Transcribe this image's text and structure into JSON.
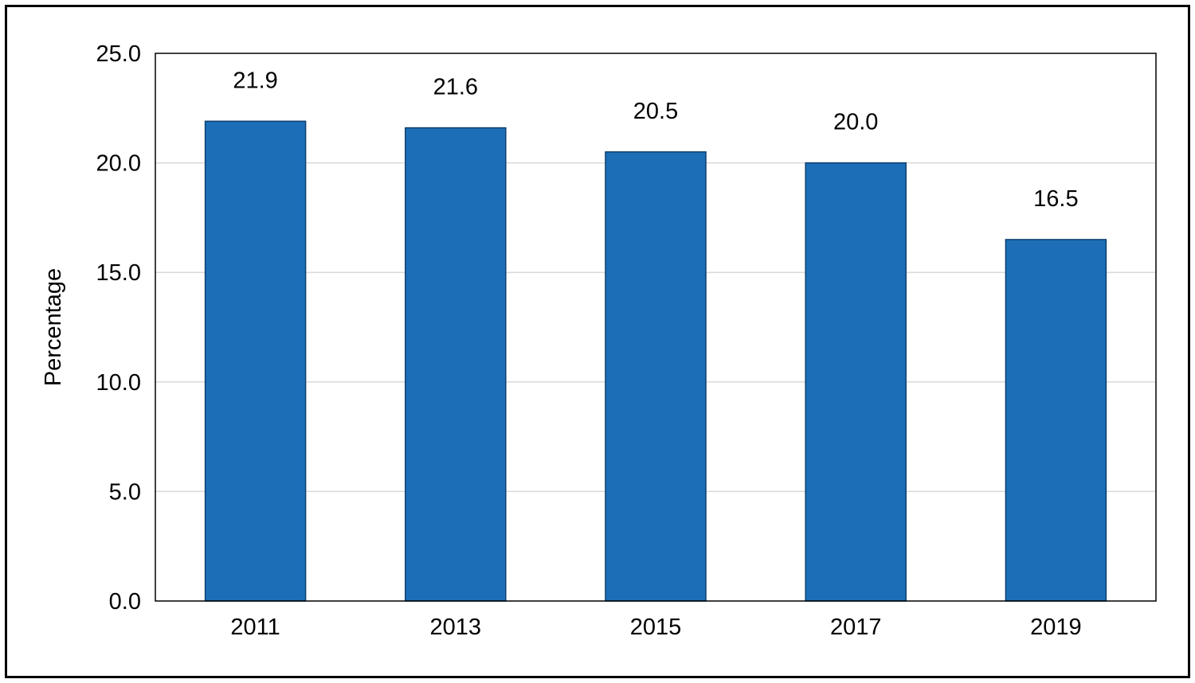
{
  "chart_data": {
    "type": "bar",
    "categories": [
      "2011",
      "2013",
      "2015",
      "2017",
      "2019"
    ],
    "values": [
      21.9,
      21.6,
      20.5,
      20.0,
      16.5
    ],
    "value_labels": [
      "21.9",
      "21.6",
      "20.5",
      "20.0",
      "16.5"
    ],
    "ylabel": "Percentage",
    "xlabel": "",
    "ylim": [
      0,
      25
    ],
    "yticks": [
      "0.0",
      "5.0",
      "10.0",
      "15.0",
      "20.0",
      "25.0"
    ],
    "ytick_values": [
      0,
      5,
      10,
      15,
      20,
      25
    ],
    "grid": true,
    "legend": "none",
    "colors": {
      "bar": "#1c6fb7",
      "bar_edge": "#0e3f6e",
      "grid": "#d9d9d9",
      "axis": "#000000"
    }
  }
}
